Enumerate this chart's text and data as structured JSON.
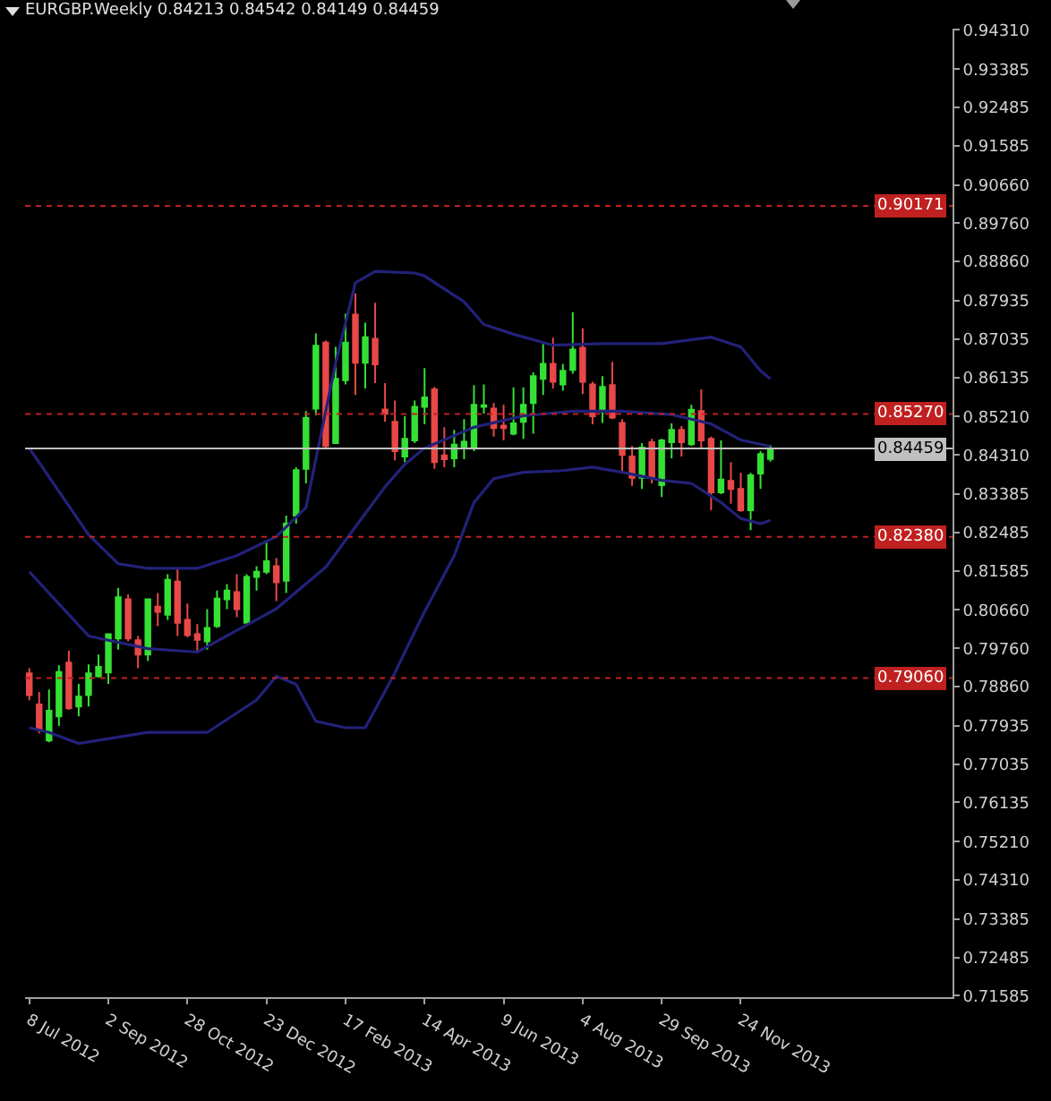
{
  "chart_data": {
    "type": "candlestick",
    "title": "EURGBP.Weekly 0.84213 0.84542 0.84149 0.84459",
    "x": [
      "2012-07-08",
      "2012-07-15",
      "2012-07-22",
      "2012-07-29",
      "2012-08-05",
      "2012-08-12",
      "2012-08-19",
      "2012-08-26",
      "2012-09-02",
      "2012-09-09",
      "2012-09-16",
      "2012-09-23",
      "2012-09-30",
      "2012-10-07",
      "2012-10-14",
      "2012-10-21",
      "2012-10-28",
      "2012-11-04",
      "2012-11-11",
      "2012-11-18",
      "2012-11-25",
      "2012-12-02",
      "2012-12-09",
      "2012-12-16",
      "2012-12-23",
      "2012-12-30",
      "2013-01-06",
      "2013-01-13",
      "2013-01-20",
      "2013-01-27",
      "2013-02-03",
      "2013-02-10",
      "2013-02-17",
      "2013-02-24",
      "2013-03-03",
      "2013-03-10",
      "2013-03-17",
      "2013-03-24",
      "2013-03-31",
      "2013-04-07",
      "2013-04-14",
      "2013-04-21",
      "2013-04-28",
      "2013-05-05",
      "2013-05-12",
      "2013-05-19",
      "2013-05-26",
      "2013-06-02",
      "2013-06-09",
      "2013-06-16",
      "2013-06-23",
      "2013-06-30",
      "2013-07-07",
      "2013-07-14",
      "2013-07-21",
      "2013-07-28",
      "2013-08-04",
      "2013-08-11",
      "2013-08-18",
      "2013-08-25",
      "2013-09-01",
      "2013-09-08",
      "2013-09-15",
      "2013-09-22",
      "2013-09-29",
      "2013-10-06",
      "2013-10-13",
      "2013-10-20",
      "2013-10-27",
      "2013-11-03",
      "2013-11-10",
      "2013-11-17",
      "2013-11-24",
      "2013-12-01",
      "2013-12-08",
      "2013-12-15"
    ],
    "ohlc": [
      [
        0.7917,
        0.7929,
        0.7854,
        0.7866
      ],
      [
        0.7844,
        0.7873,
        0.7776,
        0.7784
      ],
      [
        0.7759,
        0.7879,
        0.7755,
        0.7829
      ],
      [
        0.7816,
        0.7936,
        0.7793,
        0.792
      ],
      [
        0.7942,
        0.797,
        0.7831,
        0.7835
      ],
      [
        0.7839,
        0.7892,
        0.7816,
        0.7862
      ],
      [
        0.7866,
        0.7938,
        0.7839,
        0.7917
      ],
      [
        0.791,
        0.7961,
        0.7907,
        0.7932
      ],
      [
        0.7919,
        0.8011,
        0.7892,
        0.8009
      ],
      [
        0.7999,
        0.8118,
        0.7973,
        0.8096
      ],
      [
        0.8091,
        0.8103,
        0.7992,
        0.7999
      ],
      [
        0.7995,
        0.8005,
        0.7929,
        0.7961
      ],
      [
        0.7961,
        0.8093,
        0.7946,
        0.8091
      ],
      [
        0.8074,
        0.8106,
        0.8028,
        0.8062
      ],
      [
        0.8055,
        0.815,
        0.8043,
        0.8137
      ],
      [
        0.8133,
        0.8166,
        0.8005,
        0.8036
      ],
      [
        0.8043,
        0.8081,
        0.8002,
        0.8007
      ],
      [
        0.8009,
        0.8033,
        0.7965,
        0.7996
      ],
      [
        0.7992,
        0.8068,
        0.7973,
        0.8024
      ],
      [
        0.8028,
        0.8112,
        0.8024,
        0.8093
      ],
      [
        0.8091,
        0.8127,
        0.8068,
        0.8112
      ],
      [
        0.8108,
        0.815,
        0.8049,
        0.8068
      ],
      [
        0.8036,
        0.815,
        0.8036,
        0.8144
      ],
      [
        0.8144,
        0.8169,
        0.8112,
        0.8156
      ],
      [
        0.8156,
        0.8225,
        0.815,
        0.8181
      ],
      [
        0.8169,
        0.8188,
        0.8087,
        0.8131
      ],
      [
        0.8135,
        0.8288,
        0.8106,
        0.8269
      ],
      [
        0.8288,
        0.8402,
        0.8269,
        0.8395
      ],
      [
        0.8398,
        0.8534,
        0.8364,
        0.8518
      ],
      [
        0.854,
        0.8717,
        0.8524,
        0.8688
      ],
      [
        0.8695,
        0.87,
        0.8446,
        0.8452
      ],
      [
        0.8459,
        0.8685,
        0.8459,
        0.861
      ],
      [
        0.8607,
        0.8763,
        0.8597,
        0.8695
      ],
      [
        0.8761,
        0.8811,
        0.8572,
        0.8648
      ],
      [
        0.8648,
        0.8742,
        0.8587,
        0.8708
      ],
      [
        0.8704,
        0.8789,
        0.86,
        0.8644
      ],
      [
        0.8538,
        0.86,
        0.8509,
        0.8528
      ],
      [
        0.8509,
        0.8559,
        0.8418,
        0.844
      ],
      [
        0.8427,
        0.8522,
        0.8414,
        0.8469
      ],
      [
        0.8465,
        0.8559,
        0.8459,
        0.8544
      ],
      [
        0.8544,
        0.8635,
        0.8503,
        0.8566
      ],
      [
        0.8585,
        0.8591,
        0.8398,
        0.8414
      ],
      [
        0.843,
        0.8496,
        0.8402,
        0.8421
      ],
      [
        0.8423,
        0.849,
        0.8402,
        0.8455
      ],
      [
        0.8446,
        0.8515,
        0.8421,
        0.8462
      ],
      [
        0.8446,
        0.8595,
        0.844,
        0.8549
      ],
      [
        0.8544,
        0.8597,
        0.8528,
        0.8548
      ],
      [
        0.854,
        0.8553,
        0.8474,
        0.8494
      ],
      [
        0.85,
        0.8549,
        0.8465,
        0.8494
      ],
      [
        0.8481,
        0.859,
        0.8477,
        0.8505
      ],
      [
        0.8509,
        0.859,
        0.8469,
        0.8549
      ],
      [
        0.8553,
        0.8625,
        0.8481,
        0.8616
      ],
      [
        0.861,
        0.8692,
        0.8572,
        0.8645
      ],
      [
        0.8645,
        0.8707,
        0.8587,
        0.8603
      ],
      [
        0.8597,
        0.8645,
        0.8582,
        0.8629
      ],
      [
        0.8631,
        0.8767,
        0.8622,
        0.8679
      ],
      [
        0.8683,
        0.8729,
        0.8574,
        0.8603
      ],
      [
        0.8597,
        0.8603,
        0.8503,
        0.8522
      ],
      [
        0.8532,
        0.8616,
        0.8506,
        0.8591
      ],
      [
        0.8595,
        0.865,
        0.8515,
        0.8519
      ],
      [
        0.8506,
        0.8515,
        0.8389,
        0.8431
      ],
      [
        0.8427,
        0.8452,
        0.8358,
        0.8377
      ],
      [
        0.8377,
        0.8459,
        0.8351,
        0.8448
      ],
      [
        0.8461,
        0.8469,
        0.8364,
        0.8377
      ],
      [
        0.836,
        0.8469,
        0.8332,
        0.8465
      ],
      [
        0.8461,
        0.8505,
        0.8423,
        0.849
      ],
      [
        0.849,
        0.8499,
        0.8427,
        0.8461
      ],
      [
        0.8456,
        0.8549,
        0.8452,
        0.8537
      ],
      [
        0.8534,
        0.8585,
        0.8446,
        0.8465
      ],
      [
        0.8469,
        0.8474,
        0.8301,
        0.8343
      ],
      [
        0.8343,
        0.8465,
        0.8339,
        0.8373
      ],
      [
        0.837,
        0.8414,
        0.8316,
        0.8351
      ],
      [
        0.8351,
        0.8389,
        0.8297,
        0.8301
      ],
      [
        0.8301,
        0.8389,
        0.8254,
        0.8383
      ],
      [
        0.8387,
        0.844,
        0.8351,
        0.8433
      ],
      [
        0.84213,
        0.84542,
        0.84149,
        0.84459
      ]
    ],
    "colors": [
      "#e84848",
      "#e84848",
      "#35e035",
      "#35e035",
      "#e84848",
      "#35e035",
      "#35e035",
      "#35e035",
      "#35e035",
      "#35e035",
      "#e84848",
      "#e84848",
      "#35e035",
      "#e84848",
      "#35e035",
      "#e84848",
      "#e84848",
      "#e84848",
      "#35e035",
      "#35e035",
      "#35e035",
      "#e84848",
      "#35e035",
      "#35e035",
      "#35e035",
      "#e84848",
      "#35e035",
      "#35e035",
      "#35e035",
      "#35e035",
      "#e84848",
      "#35e035",
      "#35e035",
      "#e84848",
      "#35e035",
      "#e84848",
      "#e84848",
      "#e84848",
      "#35e035",
      "#35e035",
      "#35e035",
      "#e84848",
      "#e84848",
      "#35e035",
      "#35e035",
      "#35e035",
      "#35e035",
      "#e84848",
      "#e84848",
      "#35e035",
      "#35e035",
      "#35e035",
      "#35e035",
      "#e84848",
      "#35e035",
      "#35e035",
      "#e84848",
      "#e84848",
      "#35e035",
      "#e84848",
      "#e84848",
      "#e84848",
      "#35e035",
      "#e84848",
      "#35e035",
      "#35e035",
      "#e84848",
      "#35e035",
      "#e84848",
      "#e84848",
      "#35e035",
      "#e84848",
      "#e84848",
      "#35e035",
      "#35e035",
      "#35e035"
    ],
    "series": [
      {
        "type": "line",
        "color": "#22227a",
        "x": [
          "2012-07-08",
          "2012-07-29",
          "2012-08-19",
          "2012-09-09",
          "2012-09-30",
          "2012-11-04",
          "2012-12-02",
          "2012-12-30",
          "2013-01-20",
          "2013-01-27",
          "2013-02-10",
          "2013-02-24",
          "2013-03-10",
          "2013-04-07",
          "2013-04-14",
          "2013-05-12",
          "2013-05-26",
          "2013-06-16",
          "2013-07-14",
          "2013-08-18",
          "2013-09-29",
          "2013-11-03",
          "2013-11-24",
          "2013-12-08",
          "2013-12-15"
        ],
        "values": [
          0.8447,
          0.8345,
          0.8243,
          0.8175,
          0.8164,
          0.8164,
          0.8194,
          0.8239,
          0.8307,
          0.8421,
          0.8647,
          0.8836,
          0.8863,
          0.8859,
          0.8852,
          0.8791,
          0.8738,
          0.8715,
          0.8689,
          0.8693,
          0.8693,
          0.8708,
          0.8685,
          0.8629,
          0.861
        ]
      },
      {
        "type": "line",
        "color": "#22227a",
        "x": [
          "2012-07-08",
          "2012-08-19",
          "2012-09-30",
          "2012-11-04",
          "2012-12-30",
          "2013-02-03",
          "2013-03-17",
          "2013-03-31",
          "2013-04-14",
          "2013-05-19",
          "2013-06-23",
          "2013-07-28",
          "2013-09-01",
          "2013-10-06",
          "2013-11-03",
          "2013-11-24",
          "2013-12-15"
        ],
        "values": [
          0.8156,
          0.8005,
          0.7975,
          0.7967,
          0.8069,
          0.8167,
          0.8356,
          0.8409,
          0.8447,
          0.8496,
          0.8523,
          0.8534,
          0.8534,
          0.8526,
          0.8504,
          0.8466,
          0.8451
        ]
      },
      {
        "type": "line",
        "color": "#22227a",
        "x": [
          "2012-07-08",
          "2012-07-22",
          "2012-08-12",
          "2012-09-30",
          "2012-11-11",
          "2012-12-16",
          "2012-12-30",
          "2013-01-13",
          "2013-01-27",
          "2013-02-17",
          "2013-03-03",
          "2013-03-24",
          "2013-03-31",
          "2013-04-14",
          "2013-05-05",
          "2013-05-19",
          "2013-06-02",
          "2013-06-23",
          "2013-07-21",
          "2013-08-11",
          "2013-09-01",
          "2013-09-29",
          "2013-10-20",
          "2013-11-10",
          "2013-11-24",
          "2013-12-08",
          "2013-12-15"
        ],
        "values": [
          0.7789,
          0.7778,
          0.7752,
          0.7778,
          0.7778,
          0.7854,
          0.791,
          0.7891,
          0.7804,
          0.7789,
          0.7789,
          0.7918,
          0.7967,
          0.8062,
          0.8194,
          0.8319,
          0.8375,
          0.839,
          0.8394,
          0.8402,
          0.839,
          0.8371,
          0.8364,
          0.8319,
          0.8281,
          0.8269,
          0.8277
        ]
      }
    ],
    "ref_lines": [
      {
        "axis": "y",
        "value": 0.90171,
        "label": "0.90171",
        "color": "#c02020",
        "line_style": "dotted"
      },
      {
        "axis": "y",
        "value": 0.8527,
        "label": "0.85270",
        "color": "#c02020",
        "line_style": "dotted"
      },
      {
        "axis": "y",
        "value": 0.8238,
        "label": "0.82380",
        "color": "#c02020",
        "line_style": "dotted"
      },
      {
        "axis": "y",
        "value": 0.7906,
        "label": "0.79060",
        "color": "#c02020",
        "line_style": "dotted"
      },
      {
        "axis": "y",
        "value": 0.84459,
        "label": "0.84459",
        "color": "#c0c0c0",
        "line_style": "solid"
      }
    ],
    "xlim": [
      "2012-07-05",
      "2014-04-23"
    ],
    "xticks": [
      {
        "value": "2012-07-08",
        "label": "8 Jul 2012"
      },
      {
        "value": "2012-09-02",
        "label": "2 Sep 2012"
      },
      {
        "value": "2012-10-28",
        "label": "28 Oct 2012"
      },
      {
        "value": "2012-12-23",
        "label": "23 Dec 2012"
      },
      {
        "value": "2013-02-17",
        "label": "17 Feb 2013"
      },
      {
        "value": "2013-04-14",
        "label": "14 Apr 2013"
      },
      {
        "value": "2013-06-09",
        "label": "9 Jun 2013"
      },
      {
        "value": "2013-08-04",
        "label": "4 Aug 2013"
      },
      {
        "value": "2013-09-29",
        "label": "29 Sep 2013"
      },
      {
        "value": "2013-11-24",
        "label": "24 Nov 2013"
      }
    ],
    "ylim": [
      0.7155,
      0.9434
    ],
    "yticks": [
      {
        "value": 0.9431,
        "label": "0.94310"
      },
      {
        "value": 0.93385,
        "label": "0.93385"
      },
      {
        "value": 0.92485,
        "label": "0.92485"
      },
      {
        "value": 0.91585,
        "label": "0.91585"
      },
      {
        "value": 0.9066,
        "label": "0.90660"
      },
      {
        "value": 0.8976,
        "label": "0.89760"
      },
      {
        "value": 0.8886,
        "label": "0.88860"
      },
      {
        "value": 0.87935,
        "label": "0.87935"
      },
      {
        "value": 0.87035,
        "label": "0.87035"
      },
      {
        "value": 0.86135,
        "label": "0.86135"
      },
      {
        "value": 0.8521,
        "label": "0.85210"
      },
      {
        "value": 0.8431,
        "label": "0.84310"
      },
      {
        "value": 0.83385,
        "label": "0.83385"
      },
      {
        "value": 0.82485,
        "label": "0.82485"
      },
      {
        "value": 0.81585,
        "label": "0.81585"
      },
      {
        "value": 0.8066,
        "label": "0.80660"
      },
      {
        "value": 0.7976,
        "label": "0.79760"
      },
      {
        "value": 0.7886,
        "label": "0.78860"
      },
      {
        "value": 0.77935,
        "label": "0.77935"
      },
      {
        "value": 0.77035,
        "label": "0.77035"
      },
      {
        "value": 0.76135,
        "label": "0.76135"
      },
      {
        "value": 0.7521,
        "label": "0.75210"
      },
      {
        "value": 0.7431,
        "label": "0.74310"
      },
      {
        "value": 0.73385,
        "label": "0.73385"
      },
      {
        "value": 0.72485,
        "label": "0.72485"
      },
      {
        "value": 0.71585,
        "label": "0.71585"
      }
    ]
  }
}
